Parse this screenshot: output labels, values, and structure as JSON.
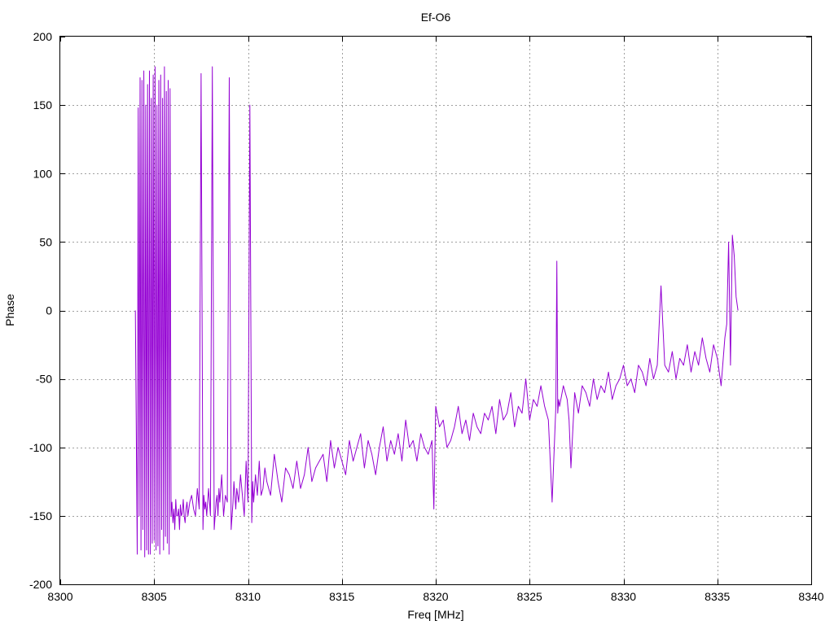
{
  "chart_data": {
    "type": "line",
    "title": "Ef-O6",
    "xlabel": "Freq [MHz]",
    "ylabel": "Phase",
    "xlim": [
      8300,
      8340
    ],
    "ylim": [
      -200,
      200
    ],
    "x_ticks": [
      8300,
      8305,
      8310,
      8315,
      8320,
      8325,
      8330,
      8335,
      8340
    ],
    "y_ticks": [
      -200,
      -150,
      -100,
      -50,
      0,
      50,
      100,
      150,
      200
    ],
    "grid": true,
    "legend": "none",
    "series": [
      {
        "color": "#9400d3",
        "x": [
          8304.0,
          8304.1,
          8304.15,
          8304.2,
          8304.25,
          8304.3,
          8304.35,
          8304.4,
          8304.45,
          8304.5,
          8304.55,
          8304.6,
          8304.65,
          8304.7,
          8304.75,
          8304.8,
          8304.85,
          8304.9,
          8304.95,
          8305.0,
          8305.05,
          8305.1,
          8305.15,
          8305.2,
          8305.25,
          8305.3,
          8305.35,
          8305.4,
          8305.45,
          8305.5,
          8305.55,
          8305.6,
          8305.65,
          8305.7,
          8305.75,
          8305.8,
          8305.85,
          8305.9,
          8305.95,
          8306.0,
          8306.05,
          8306.1,
          8306.15,
          8306.2,
          8306.25,
          8306.3,
          8306.35,
          8306.4,
          8306.45,
          8306.5,
          8306.55,
          8306.6,
          8306.65,
          8306.7,
          8306.75,
          8306.8,
          8306.9,
          8307.0,
          8307.1,
          8307.2,
          8307.3,
          8307.4,
          8307.5,
          8307.6,
          8307.65,
          8307.7,
          8307.75,
          8307.8,
          8307.9,
          8308.0,
          8308.1,
          8308.2,
          8308.3,
          8308.35,
          8308.4,
          8308.45,
          8308.5,
          8308.6,
          8308.7,
          8308.8,
          8308.9,
          8309.0,
          8309.1,
          8309.2,
          8309.25,
          8309.3,
          8309.35,
          8309.4,
          8309.5,
          8309.6,
          8309.7,
          8309.8,
          8309.9,
          8310.0,
          8310.1,
          8310.2,
          8310.25,
          8310.3,
          8310.35,
          8310.4,
          8310.5,
          8310.6,
          8310.7,
          8310.8,
          8310.9,
          8311.0,
          8311.2,
          8311.4,
          8311.6,
          8311.8,
          8312.0,
          8312.2,
          8312.4,
          8312.6,
          8312.8,
          8313.0,
          8313.2,
          8313.4,
          8313.6,
          8313.8,
          8314.0,
          8314.2,
          8314.4,
          8314.6,
          8314.8,
          8315.0,
          8315.2,
          8315.4,
          8315.6,
          8315.8,
          8316.0,
          8316.2,
          8316.4,
          8316.6,
          8316.8,
          8317.0,
          8317.2,
          8317.4,
          8317.6,
          8317.8,
          8318.0,
          8318.2,
          8318.4,
          8318.6,
          8318.8,
          8319.0,
          8319.2,
          8319.4,
          8319.6,
          8319.8,
          8319.9,
          8320.0,
          8320.2,
          8320.4,
          8320.6,
          8320.8,
          8321.0,
          8321.2,
          8321.4,
          8321.6,
          8321.8,
          8322.0,
          8322.2,
          8322.4,
          8322.6,
          8322.8,
          8323.0,
          8323.2,
          8323.4,
          8323.6,
          8323.8,
          8324.0,
          8324.2,
          8324.4,
          8324.6,
          8324.8,
          8325.0,
          8325.2,
          8325.4,
          8325.6,
          8325.8,
          8326.0,
          8326.2,
          8326.4,
          8326.45,
          8326.5,
          8326.55,
          8326.6,
          8326.8,
          8327.0,
          8327.1,
          8327.2,
          8327.4,
          8327.6,
          8327.8,
          8328.0,
          8328.2,
          8328.4,
          8328.6,
          8328.8,
          8329.0,
          8329.2,
          8329.4,
          8329.6,
          8329.8,
          8330.0,
          8330.2,
          8330.4,
          8330.6,
          8330.8,
          8331.0,
          8331.2,
          8331.4,
          8331.6,
          8331.8,
          8332.0,
          8332.2,
          8332.4,
          8332.6,
          8332.8,
          8333.0,
          8333.2,
          8333.4,
          8333.6,
          8333.8,
          8334.0,
          8334.2,
          8334.4,
          8334.6,
          8334.8,
          8335.0,
          8335.2,
          8335.4,
          8335.5,
          8335.6,
          8335.7,
          8335.8,
          8335.9,
          8336.0,
          8336.1
        ],
        "y": [
          0,
          -178,
          148,
          -150,
          170,
          -175,
          168,
          -160,
          175,
          -180,
          150,
          -175,
          165,
          -178,
          175,
          -178,
          155,
          -170,
          172,
          -168,
          178,
          -175,
          150,
          -172,
          168,
          -178,
          172,
          -160,
          155,
          -175,
          178,
          -165,
          160,
          -170,
          168,
          -178,
          162,
          -150,
          -140,
          -155,
          -145,
          -160,
          -138,
          -150,
          -150,
          -145,
          -160,
          -142,
          -150,
          -148,
          -138,
          -150,
          -155,
          -145,
          -140,
          -150,
          -140,
          -135,
          -145,
          -150,
          -130,
          -145,
          173,
          -160,
          -135,
          -145,
          -140,
          -150,
          -130,
          -150,
          178,
          -160,
          -140,
          -135,
          -150,
          -130,
          -140,
          -120,
          -150,
          -135,
          -140,
          170,
          -160,
          -140,
          -125,
          -135,
          -145,
          -130,
          -140,
          -120,
          -135,
          -150,
          -110,
          -140,
          150,
          -155,
          -125,
          -140,
          -130,
          -120,
          -135,
          -110,
          -135,
          -130,
          -115,
          -125,
          -135,
          -105,
          -125,
          -140,
          -115,
          -120,
          -130,
          -110,
          -130,
          -120,
          -100,
          -125,
          -115,
          -110,
          -105,
          -125,
          -95,
          -115,
          -100,
          -110,
          -120,
          -95,
          -110,
          -100,
          -90,
          -115,
          -95,
          -105,
          -120,
          -100,
          -85,
          -110,
          -95,
          -105,
          -90,
          -110,
          -80,
          -100,
          -95,
          -110,
          -90,
          -100,
          -105,
          -95,
          -145,
          -70,
          -85,
          -80,
          -100,
          -95,
          -85,
          -70,
          -90,
          -80,
          -95,
          -75,
          -85,
          -90,
          -75,
          -80,
          -70,
          -90,
          -65,
          -80,
          -75,
          -60,
          -85,
          -70,
          -75,
          -50,
          -80,
          -65,
          -70,
          -55,
          -70,
          -80,
          -140,
          -70,
          36,
          -75,
          -65,
          -70,
          -55,
          -65,
          -80,
          -115,
          -60,
          -75,
          -55,
          -60,
          -70,
          -50,
          -65,
          -55,
          -60,
          -45,
          -65,
          -55,
          -50,
          -40,
          -55,
          -50,
          -60,
          -40,
          -45,
          -55,
          -35,
          -50,
          -40,
          18,
          -40,
          -45,
          -30,
          -50,
          -35,
          -40,
          -25,
          -45,
          -30,
          -40,
          -20,
          -35,
          -45,
          -25,
          -35,
          -55,
          -20,
          -10,
          50,
          -40,
          55,
          40,
          10,
          0
        ]
      }
    ]
  }
}
